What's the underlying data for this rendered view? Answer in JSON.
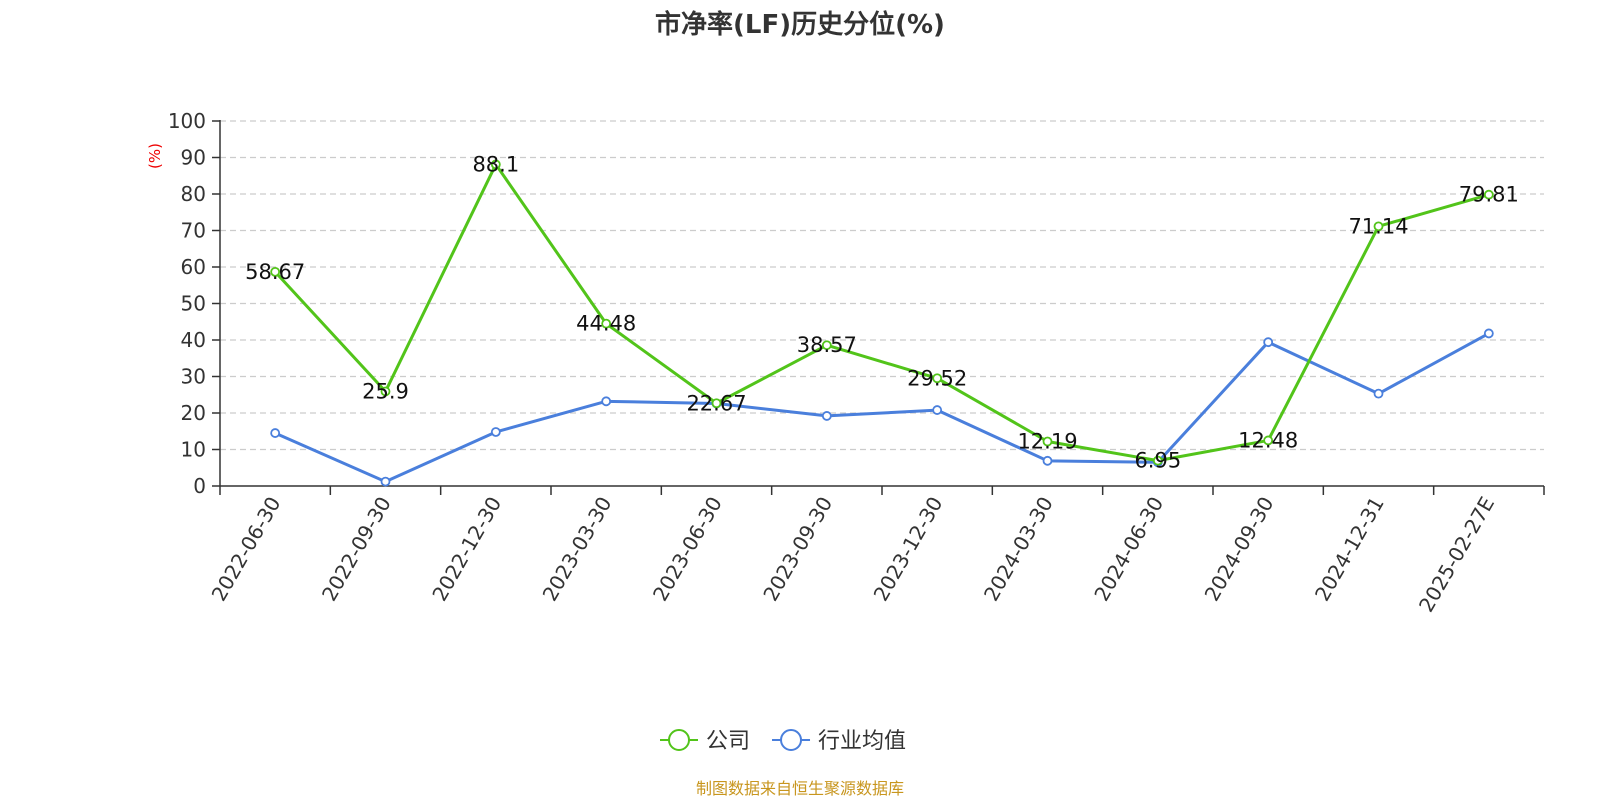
{
  "chart_data": {
    "type": "line",
    "title": "市净率(LF)历史分位(%)",
    "ylabel": "(%)",
    "ylim": [
      0,
      100
    ],
    "yticks": [
      0,
      10,
      20,
      30,
      40,
      50,
      60,
      70,
      80,
      90,
      100
    ],
    "grid": true,
    "legend_position": "bottom",
    "categories": [
      "2022-06-30",
      "2022-09-30",
      "2022-12-30",
      "2023-03-30",
      "2023-06-30",
      "2023-09-30",
      "2023-12-30",
      "2024-03-30",
      "2024-06-30",
      "2024-09-30",
      "2024-12-31",
      "2025-02-27E"
    ],
    "series": [
      {
        "name": "公司",
        "color": "#52c41a",
        "show_labels": true,
        "values": [
          58.67,
          25.9,
          88.1,
          44.48,
          22.67,
          38.57,
          29.52,
          12.19,
          6.95,
          12.48,
          71.14,
          79.81
        ]
      },
      {
        "name": "行业均值",
        "color": "#4a7fdc",
        "show_labels": false,
        "values": [
          14.5,
          1.2,
          14.8,
          23.2,
          22.6,
          19.2,
          20.8,
          6.9,
          6.5,
          39.4,
          25.3,
          41.8
        ]
      }
    ]
  },
  "source_text": "制图数据来自恒生聚源数据库",
  "colors": {
    "axis": "#333333",
    "grid": "#cccccc",
    "unit": "#ee0000",
    "source": "#c8961e"
  }
}
